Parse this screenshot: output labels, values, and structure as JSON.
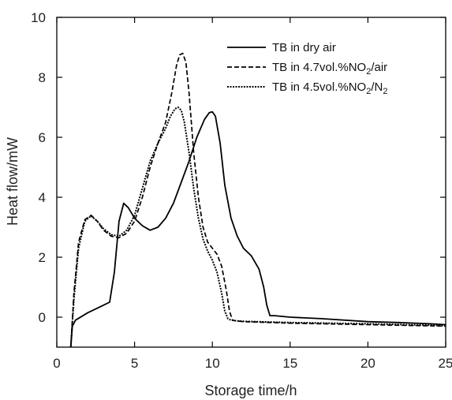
{
  "chart_data": {
    "type": "line",
    "title": "",
    "xlabel": "Storage time/h",
    "ylabel": "Heat flow/mW",
    "xlim": [
      0,
      25
    ],
    "ylim": [
      -1,
      10
    ],
    "xticks": [
      0,
      5,
      10,
      15,
      20,
      25
    ],
    "yticks": [
      0,
      2,
      4,
      6,
      8,
      10
    ],
    "grid": false,
    "legend_position": "top-right",
    "legend": [
      {
        "main": "TB in dry air",
        "sub": "",
        "tail": ""
      },
      {
        "main": "TB in 4.7vol.%NO",
        "sub": "2",
        "tail": "/air"
      },
      {
        "main": "TB in 4.5vol.%NO",
        "sub": "2",
        "tail": "/N"
      }
    ],
    "series": [
      {
        "name": "TB in dry air",
        "style": "solid",
        "x": [
          0.9,
          1.0,
          1.2,
          2.0,
          3.0,
          3.4,
          3.7,
          4.0,
          4.3,
          4.6,
          5.0,
          5.5,
          6.0,
          6.5,
          7.0,
          7.5,
          8.0,
          8.5,
          9.0,
          9.5,
          9.8,
          10.0,
          10.2,
          10.5,
          10.8,
          11.2,
          11.6,
          12.0,
          12.5,
          13.0,
          13.3,
          13.5,
          13.7,
          14.0,
          15.0,
          17.0,
          20.0,
          22.0,
          24.0,
          25.0
        ],
        "y": [
          -1.0,
          -0.3,
          -0.1,
          0.15,
          0.4,
          0.5,
          1.5,
          3.2,
          3.8,
          3.65,
          3.3,
          3.05,
          2.9,
          3.0,
          3.3,
          3.8,
          4.5,
          5.2,
          6.0,
          6.6,
          6.82,
          6.85,
          6.7,
          5.8,
          4.4,
          3.3,
          2.7,
          2.3,
          2.05,
          1.6,
          1.0,
          0.4,
          0.05,
          0.05,
          0.0,
          -0.05,
          -0.15,
          -0.18,
          -0.22,
          -0.25
        ]
      },
      {
        "name": "TB in 4.7vol.%NO2/air",
        "style": "dashed",
        "x": [
          0.9,
          1.1,
          1.4,
          1.8,
          2.2,
          2.6,
          3.0,
          3.5,
          4.0,
          4.5,
          5.0,
          5.5,
          6.0,
          6.5,
          7.0,
          7.4,
          7.7,
          7.9,
          8.1,
          8.3,
          8.5,
          8.8,
          9.1,
          9.4,
          9.7,
          10.0,
          10.3,
          10.6,
          10.9,
          11.1,
          11.3,
          11.5,
          12.0,
          15.0,
          20.0,
          25.0
        ],
        "y": [
          -1.0,
          0.8,
          2.5,
          3.25,
          3.4,
          3.2,
          2.9,
          2.7,
          2.65,
          2.8,
          3.2,
          4.0,
          5.0,
          5.8,
          6.5,
          7.5,
          8.4,
          8.75,
          8.8,
          8.5,
          7.5,
          5.5,
          4.0,
          3.0,
          2.5,
          2.3,
          2.1,
          1.7,
          0.9,
          0.2,
          -0.1,
          -0.12,
          -0.15,
          -0.2,
          -0.25,
          -0.3
        ]
      },
      {
        "name": "TB in 4.5vol.%NO2/N2",
        "style": "dotted",
        "x": [
          0.9,
          1.1,
          1.4,
          1.8,
          2.2,
          2.6,
          3.0,
          3.5,
          4.0,
          4.5,
          5.0,
          5.5,
          6.0,
          6.5,
          7.0,
          7.3,
          7.6,
          7.8,
          8.0,
          8.2,
          8.5,
          8.8,
          9.1,
          9.4,
          9.7,
          10.0,
          10.3,
          10.6,
          10.8,
          11.0,
          11.2,
          11.5,
          12.0,
          15.0,
          20.0,
          25.0
        ],
        "y": [
          -1.0,
          0.6,
          2.3,
          3.2,
          3.38,
          3.2,
          2.95,
          2.75,
          2.7,
          2.9,
          3.4,
          4.3,
          5.2,
          5.8,
          6.3,
          6.7,
          6.95,
          7.0,
          6.9,
          6.5,
          5.5,
          4.3,
          3.3,
          2.6,
          2.2,
          1.9,
          1.5,
          0.8,
          0.2,
          -0.05,
          -0.1,
          -0.12,
          -0.14,
          -0.18,
          -0.22,
          -0.28
        ]
      }
    ]
  }
}
